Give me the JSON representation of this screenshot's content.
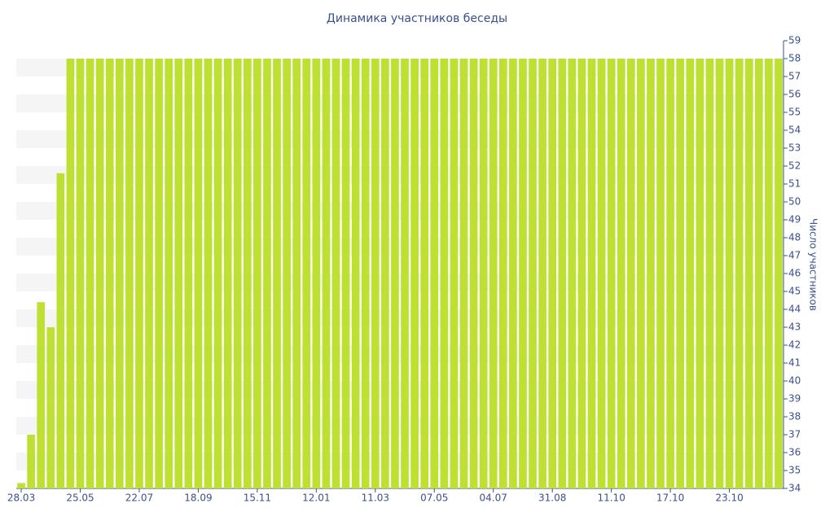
{
  "chart_data": {
    "type": "bar",
    "title": "Динамика участников беседы",
    "y_label": "Число участников",
    "categories": [
      "28.03",
      null,
      null,
      null,
      null,
      null,
      "25.05",
      null,
      null,
      null,
      null,
      null,
      "22.07",
      null,
      null,
      null,
      null,
      null,
      "18.09",
      null,
      null,
      null,
      null,
      null,
      "15.11",
      null,
      null,
      null,
      null,
      null,
      "12.01",
      null,
      null,
      null,
      null,
      null,
      "11.03",
      null,
      null,
      null,
      null,
      null,
      "07.05",
      null,
      null,
      null,
      null,
      null,
      "04.07",
      null,
      null,
      null,
      null,
      null,
      "31.08",
      null,
      null,
      null,
      null,
      null,
      "11.10",
      null,
      null,
      null,
      null,
      null,
      "17.10",
      null,
      null,
      null,
      null,
      null,
      "23.10",
      null,
      null,
      null,
      null,
      null
    ],
    "values": [
      34.3,
      37,
      44.4,
      43,
      51.6,
      58,
      58,
      58,
      58,
      58,
      58,
      58,
      58,
      58,
      58,
      58,
      58,
      58,
      58,
      58,
      58,
      58,
      58,
      58,
      58,
      58,
      58,
      58,
      58,
      58,
      58,
      58,
      58,
      58,
      58,
      58,
      58,
      58,
      58,
      58,
      58,
      58,
      58,
      58,
      58,
      58,
      58,
      58,
      58,
      58,
      58,
      58,
      58,
      58,
      58,
      58,
      58,
      58,
      58,
      58,
      58,
      58,
      58,
      58,
      58,
      58,
      58,
      58,
      58,
      58,
      58,
      58,
      58,
      58,
      58,
      58,
      58,
      58
    ],
    "color": "#bee032",
    "ylim": [
      34,
      59
    ],
    "yticks": [
      34,
      35,
      36,
      37,
      38,
      39,
      40,
      41,
      42,
      43,
      44,
      45,
      46,
      47,
      48,
      49,
      50,
      51,
      52,
      53,
      54,
      55,
      56,
      57,
      58,
      59
    ],
    "y_axis_side": "right",
    "stripes": true
  }
}
